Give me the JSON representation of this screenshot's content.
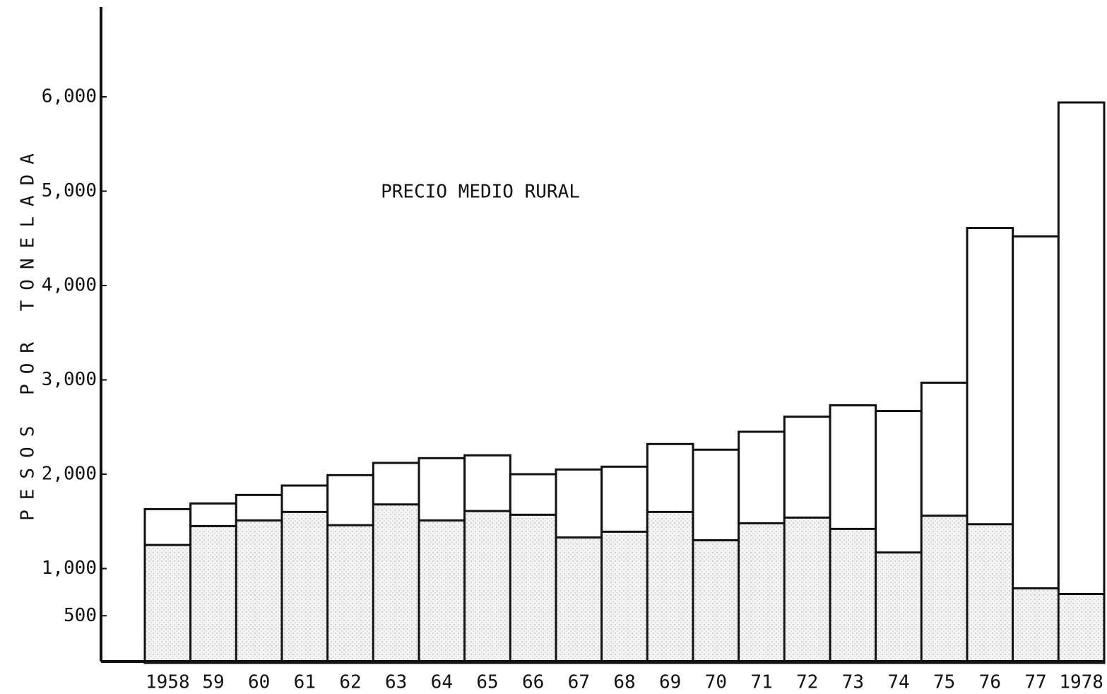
{
  "chart_data": {
    "type": "bar",
    "title": "PRECIO MEDIO RURAL",
    "y_label": "PESOS POR TONELADA",
    "categories": [
      "1958",
      "59",
      "60",
      "61",
      "62",
      "63",
      "64",
      "65",
      "66",
      "67",
      "68",
      "69",
      "70",
      "71",
      "72",
      "73",
      "74",
      "75",
      "76",
      "77",
      "1978"
    ],
    "series": [
      {
        "name": "PRECIO MEDIO RURAL",
        "color": "#ffffff",
        "values": [
          1630,
          1690,
          1780,
          1880,
          1990,
          2120,
          2170,
          2200,
          2000,
          2050,
          2080,
          2320,
          2260,
          2450,
          2610,
          2730,
          2670,
          2970,
          4610,
          4520,
          5940
        ]
      },
      {
        "color": "#e4e4e4",
        "values": [
          1250,
          1450,
          1510,
          1600,
          1460,
          1680,
          1510,
          1610,
          1570,
          1330,
          1390,
          1600,
          1300,
          1480,
          1540,
          1420,
          1170,
          1560,
          1470,
          790,
          730
        ]
      }
    ],
    "ylim": [
      0,
      7000
    ],
    "yticks": [
      500,
      {
        "value": 1000,
        "label": "1,000"
      },
      {
        "value": 2000,
        "label": "2,000"
      },
      {
        "value": 3000,
        "label": "3,000"
      },
      {
        "value": 4000,
        "label": "4,000"
      },
      {
        "value": 5000,
        "label": "5,000"
      },
      {
        "value": 6000,
        "label": "6,000"
      }
    ]
  }
}
